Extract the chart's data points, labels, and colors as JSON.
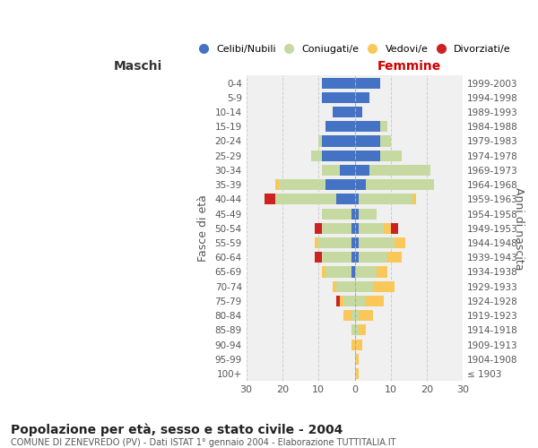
{
  "age_groups": [
    "100+",
    "95-99",
    "90-94",
    "85-89",
    "80-84",
    "75-79",
    "70-74",
    "65-69",
    "60-64",
    "55-59",
    "50-54",
    "45-49",
    "40-44",
    "35-39",
    "30-34",
    "25-29",
    "20-24",
    "15-19",
    "10-14",
    "5-9",
    "0-4"
  ],
  "birth_years": [
    "≤ 1903",
    "1904-1908",
    "1909-1913",
    "1914-1918",
    "1919-1923",
    "1924-1928",
    "1929-1933",
    "1934-1938",
    "1939-1943",
    "1944-1948",
    "1949-1953",
    "1954-1958",
    "1959-1963",
    "1964-1968",
    "1969-1973",
    "1974-1978",
    "1979-1983",
    "1984-1988",
    "1989-1993",
    "1994-1998",
    "1999-2003"
  ],
  "maschi": {
    "celibi": [
      0,
      0,
      0,
      0,
      0,
      0,
      0,
      1,
      1,
      1,
      1,
      1,
      5,
      8,
      4,
      9,
      9,
      8,
      6,
      9,
      9
    ],
    "coniugati": [
      0,
      0,
      0,
      1,
      1,
      3,
      5,
      7,
      8,
      9,
      8,
      8,
      17,
      13,
      5,
      3,
      1,
      0,
      0,
      0,
      0
    ],
    "vedovi": [
      0,
      0,
      1,
      0,
      2,
      1,
      1,
      1,
      0,
      1,
      0,
      0,
      0,
      1,
      0,
      0,
      0,
      0,
      0,
      0,
      0
    ],
    "divorziati": [
      0,
      0,
      0,
      0,
      0,
      1,
      0,
      0,
      2,
      0,
      2,
      0,
      3,
      0,
      0,
      0,
      0,
      0,
      0,
      0,
      0
    ]
  },
  "femmine": {
    "nubili": [
      0,
      0,
      0,
      0,
      0,
      0,
      0,
      0,
      1,
      1,
      1,
      1,
      1,
      3,
      4,
      7,
      7,
      7,
      2,
      4,
      7
    ],
    "coniugate": [
      0,
      0,
      0,
      1,
      1,
      3,
      5,
      6,
      8,
      10,
      7,
      5,
      15,
      19,
      17,
      6,
      3,
      2,
      0,
      0,
      0
    ],
    "vedove": [
      1,
      1,
      2,
      2,
      4,
      5,
      6,
      3,
      4,
      3,
      2,
      0,
      1,
      0,
      0,
      0,
      0,
      0,
      0,
      0,
      0
    ],
    "divorziate": [
      0,
      0,
      0,
      0,
      0,
      0,
      0,
      0,
      0,
      0,
      2,
      0,
      0,
      0,
      0,
      0,
      0,
      0,
      0,
      0,
      0
    ]
  },
  "colors": {
    "celibi_nubili": "#4472C4",
    "coniugati": "#C5D9A0",
    "vedovi": "#FAC858",
    "divorziati": "#CC2222"
  },
  "xlim": 30,
  "title": "Popolazione per età, sesso e stato civile - 2004",
  "subtitle": "COMUNE DI ZENEVREDO (PV) - Dati ISTAT 1° gennaio 2004 - Elaborazione TUTTITALIA.IT",
  "ylabel_left": "Fasce di età",
  "ylabel_right": "Anni di nascita",
  "xlabel_left": "Maschi",
  "xlabel_right": "Femmine",
  "bg_color": "#f0f0f0",
  "grid_color": "#cccccc"
}
